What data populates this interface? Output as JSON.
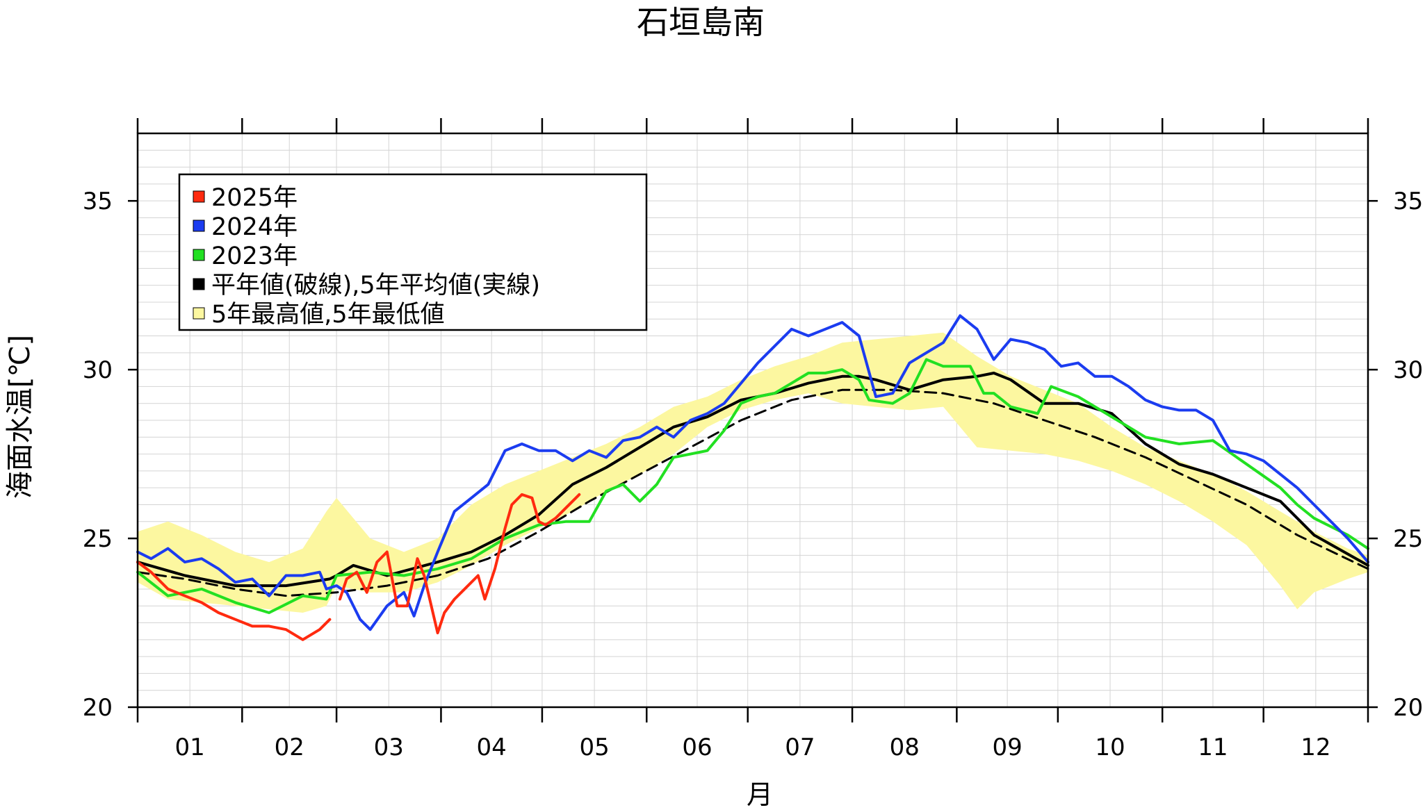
{
  "chart_data": {
    "type": "line",
    "title": "石垣島南",
    "xlabel": "月",
    "ylabel": "海面水温[℃]",
    "x_unit": "day_of_year",
    "xlim": [
      1,
      366
    ],
    "ylim": [
      20,
      37
    ],
    "y_ticks": [
      20,
      25,
      30,
      35
    ],
    "x_ticks": [
      "01",
      "02",
      "03",
      "04",
      "05",
      "06",
      "07",
      "08",
      "09",
      "10",
      "11",
      "12"
    ],
    "grid": true,
    "legend_position": "top-left",
    "legend": [
      {
        "label": "2025年",
        "color": "#ff2a0f",
        "shape": "square"
      },
      {
        "label": "2024年",
        "color": "#1b3cf0",
        "shape": "square"
      },
      {
        "label": "2023年",
        "color": "#22e022",
        "shape": "square"
      },
      {
        "label": "平年値(破線),5年平均値(実線)",
        "color": "#000000",
        "shape": "square"
      },
      {
        "label": "5年最高値,5年最低値",
        "color": "#fcf7a0",
        "shape": "square"
      }
    ],
    "band_5yr": {
      "color": "#fcf7a0",
      "x": [
        1,
        10,
        20,
        30,
        40,
        50,
        57,
        60,
        70,
        80,
        90,
        100,
        110,
        120,
        130,
        140,
        150,
        160,
        170,
        180,
        190,
        200,
        210,
        220,
        230,
        240,
        250,
        260,
        270,
        280,
        290,
        300,
        310,
        320,
        330,
        340,
        345,
        350,
        360,
        366
      ],
      "upper": [
        25.2,
        25.5,
        25.1,
        24.6,
        24.3,
        24.7,
        25.8,
        26.2,
        25.0,
        24.6,
        25.0,
        26.0,
        26.6,
        27.0,
        27.4,
        27.8,
        28.3,
        28.9,
        29.2,
        29.7,
        30.1,
        30.4,
        30.8,
        30.9,
        31.0,
        31.1,
        30.4,
        29.8,
        29.4,
        29.0,
        28.3,
        27.7,
        27.3,
        26.9,
        26.4,
        25.8,
        25.5,
        25.2,
        24.7,
        24.5
      ],
      "lower": [
        23.7,
        23.2,
        23.1,
        23.0,
        22.9,
        22.8,
        23.0,
        23.6,
        23.4,
        23.4,
        23.7,
        24.2,
        24.8,
        25.3,
        25.8,
        26.4,
        26.9,
        27.5,
        28.3,
        28.8,
        29.1,
        29.3,
        29.0,
        28.9,
        28.8,
        28.9,
        27.7,
        27.6,
        27.5,
        27.3,
        27.0,
        26.6,
        26.1,
        25.5,
        24.8,
        23.6,
        22.9,
        23.4,
        23.8,
        24.0
      ]
    },
    "series": [
      {
        "name": "平年値",
        "color": "#000000",
        "style": "dashed",
        "x": [
          1,
          15,
          30,
          45,
          60,
          75,
          90,
          105,
          120,
          135,
          150,
          165,
          180,
          195,
          210,
          225,
          240,
          255,
          270,
          285,
          300,
          315,
          330,
          345,
          366
        ],
        "values": [
          24.0,
          23.8,
          23.5,
          23.3,
          23.4,
          23.6,
          23.9,
          24.4,
          25.2,
          26.1,
          26.9,
          27.7,
          28.5,
          29.1,
          29.4,
          29.4,
          29.3,
          29.0,
          28.5,
          28.0,
          27.4,
          26.7,
          26.0,
          25.1,
          24.1
        ]
      },
      {
        "name": "5年平均値",
        "color": "#000000",
        "style": "solid",
        "x": [
          1,
          15,
          30,
          45,
          58,
          60,
          65,
          75,
          90,
          100,
          110,
          120,
          130,
          140,
          150,
          160,
          170,
          180,
          190,
          200,
          210,
          215,
          220,
          230,
          240,
          250,
          255,
          260,
          270,
          280,
          290,
          300,
          310,
          320,
          330,
          340,
          350,
          366
        ],
        "values": [
          24.3,
          23.9,
          23.6,
          23.6,
          23.8,
          23.9,
          24.2,
          23.9,
          24.3,
          24.6,
          25.1,
          25.7,
          26.6,
          27.1,
          27.7,
          28.3,
          28.6,
          29.1,
          29.3,
          29.6,
          29.8,
          29.8,
          29.7,
          29.4,
          29.7,
          29.8,
          29.9,
          29.7,
          29.0,
          29.0,
          28.7,
          27.8,
          27.2,
          26.9,
          26.5,
          26.1,
          25.1,
          24.2
        ]
      },
      {
        "name": "2023年",
        "color": "#22e022",
        "style": "solid",
        "x": [
          1,
          10,
          20,
          30,
          40,
          50,
          57,
          60,
          70,
          80,
          90,
          100,
          110,
          120,
          128,
          135,
          140,
          145,
          150,
          155,
          160,
          170,
          175,
          180,
          185,
          190,
          200,
          205,
          210,
          215,
          218,
          225,
          230,
          235,
          240,
          248,
          252,
          255,
          260,
          268,
          272,
          280,
          290,
          300,
          310,
          320,
          330,
          340,
          345,
          350,
          360,
          366
        ],
        "values": [
          24.0,
          23.3,
          23.5,
          23.1,
          22.8,
          23.3,
          23.2,
          23.9,
          24.0,
          23.9,
          24.1,
          24.4,
          25.0,
          25.4,
          25.5,
          25.5,
          26.4,
          26.6,
          26.1,
          26.6,
          27.4,
          27.6,
          28.2,
          29.0,
          29.2,
          29.3,
          29.9,
          29.9,
          30.0,
          29.7,
          29.1,
          29.0,
          29.3,
          30.3,
          30.1,
          30.1,
          29.3,
          29.3,
          28.9,
          28.7,
          29.5,
          29.2,
          28.6,
          28.0,
          27.8,
          27.9,
          27.2,
          26.5,
          26.0,
          25.6,
          25.1,
          24.7
        ]
      },
      {
        "name": "2024年",
        "color": "#1b3cf0",
        "style": "solid",
        "x": [
          1,
          5,
          10,
          15,
          20,
          25,
          30,
          35,
          40,
          45,
          50,
          55,
          57,
          60,
          63,
          67,
          70,
          75,
          80,
          83,
          86,
          90,
          95,
          100,
          105,
          110,
          115,
          120,
          125,
          130,
          135,
          140,
          145,
          150,
          155,
          160,
          165,
          170,
          175,
          180,
          185,
          190,
          195,
          200,
          205,
          210,
          215,
          220,
          225,
          230,
          235,
          240,
          245,
          250,
          255,
          260,
          265,
          270,
          275,
          280,
          285,
          290,
          295,
          300,
          305,
          310,
          315,
          320,
          325,
          330,
          335,
          340,
          345,
          350,
          355,
          360,
          366
        ],
        "values": [
          24.6,
          24.4,
          24.7,
          24.3,
          24.4,
          24.1,
          23.7,
          23.8,
          23.3,
          23.9,
          23.9,
          24.0,
          23.5,
          23.6,
          23.4,
          22.6,
          22.3,
          23.0,
          23.4,
          22.7,
          23.6,
          24.6,
          25.8,
          26.2,
          26.6,
          27.6,
          27.8,
          27.6,
          27.6,
          27.3,
          27.6,
          27.4,
          27.9,
          28.0,
          28.3,
          28.0,
          28.5,
          28.7,
          29.0,
          29.6,
          30.2,
          30.7,
          31.2,
          31.0,
          31.2,
          31.4,
          31.0,
          29.2,
          29.3,
          30.2,
          30.5,
          30.8,
          31.6,
          31.2,
          30.3,
          30.9,
          30.8,
          30.6,
          30.1,
          30.2,
          29.8,
          29.8,
          29.5,
          29.1,
          28.9,
          28.8,
          28.8,
          28.5,
          27.6,
          27.5,
          27.3,
          26.9,
          26.5,
          26.0,
          25.5,
          25.0,
          24.3
        ]
      },
      {
        "name": "2025年",
        "color": "#ff2a0f",
        "style": "solid",
        "x": [
          1,
          5,
          10,
          15,
          20,
          25,
          30,
          35,
          40,
          45,
          50,
          55,
          58,
          60,
          61,
          63,
          66,
          69,
          72,
          75,
          78,
          81,
          84,
          86,
          90,
          92,
          95,
          98,
          102,
          104,
          107,
          110,
          112,
          115,
          118,
          120,
          122,
          125,
          128,
          132
        ],
        "values": [
          24.3,
          24.0,
          23.5,
          23.3,
          23.1,
          22.8,
          22.6,
          22.4,
          22.4,
          22.3,
          22.0,
          22.3,
          22.6,
          null,
          23.2,
          23.8,
          24.0,
          23.4,
          24.3,
          24.6,
          23.0,
          23.0,
          24.4,
          23.9,
          22.2,
          22.8,
          23.2,
          23.5,
          23.9,
          23.2,
          24.1,
          25.3,
          26.0,
          26.3,
          26.2,
          25.5,
          25.4,
          25.6,
          25.9,
          26.3
        ]
      }
    ]
  }
}
